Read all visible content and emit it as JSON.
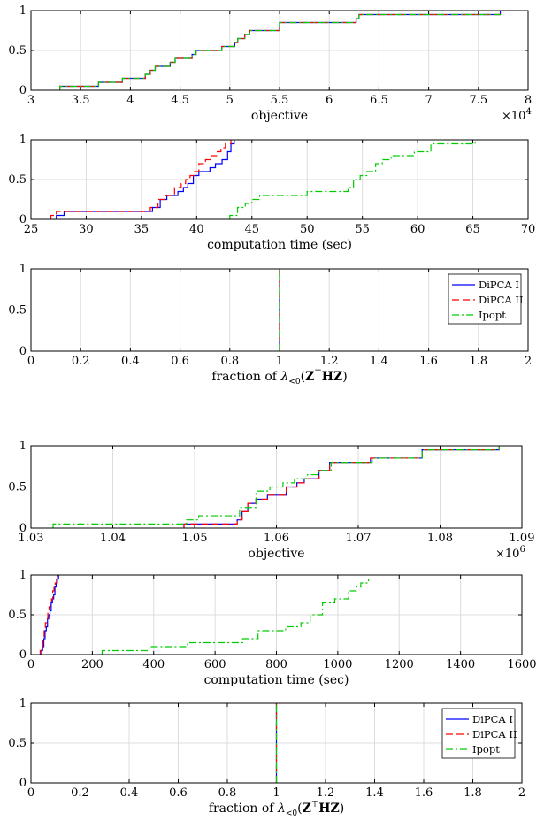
{
  "figure_colors": {
    "DiPCA I": "#0000ff",
    "DiPCA II": "#ff0000",
    "Ipopt": "#00cc00",
    "black": "#000000"
  },
  "chart_data": [
    {
      "type": "line",
      "xlabel": "objective",
      "exponent_label": "×10^4",
      "xlim": [
        3,
        8
      ],
      "ylim": [
        0,
        1
      ],
      "xticks": [
        "3",
        "3.5",
        "4",
        "4.5",
        "5",
        "5.5",
        "6",
        "6.5",
        "7",
        "7.5",
        "8"
      ],
      "yticks": [
        "0",
        "0.5",
        "1"
      ],
      "series": [
        {
          "name": "DiPCA I",
          "style": "solid",
          "x": [
            3.29,
            3.68,
            3.92,
            4.15,
            4.2,
            4.25,
            4.4,
            4.45,
            4.62,
            4.66,
            4.92,
            5.05,
            5.08,
            5.15,
            5.2,
            5.5,
            6.27,
            6.3,
            7.72
          ],
          "y": [
            0.05,
            0.1,
            0.15,
            0.2,
            0.25,
            0.3,
            0.35,
            0.4,
            0.45,
            0.5,
            0.55,
            0.6,
            0.65,
            0.7,
            0.75,
            0.85,
            0.9,
            0.95,
            1.0
          ]
        },
        {
          "name": "DiPCA II",
          "style": "dashed",
          "x": [
            3.29,
            3.68,
            3.92,
            4.15,
            4.2,
            4.25,
            4.4,
            4.45,
            4.62,
            4.66,
            4.92,
            5.05,
            5.08,
            5.15,
            5.2,
            5.5,
            6.27,
            6.3,
            7.72
          ],
          "y": [
            0.05,
            0.1,
            0.15,
            0.2,
            0.25,
            0.3,
            0.35,
            0.4,
            0.45,
            0.5,
            0.55,
            0.6,
            0.65,
            0.7,
            0.75,
            0.85,
            0.9,
            0.95,
            1.0
          ]
        },
        {
          "name": "Ipopt",
          "style": "dashdot",
          "x": [
            3.29,
            3.68,
            3.92,
            4.15,
            4.2,
            4.25,
            4.4,
            4.45,
            4.62,
            4.66,
            4.92,
            5.05,
            5.08,
            5.15,
            5.2,
            5.5,
            6.27,
            6.3,
            7.72
          ],
          "y": [
            0.05,
            0.1,
            0.15,
            0.2,
            0.25,
            0.3,
            0.35,
            0.4,
            0.45,
            0.5,
            0.55,
            0.6,
            0.65,
            0.7,
            0.75,
            0.85,
            0.9,
            0.95,
            1.0
          ]
        }
      ]
    },
    {
      "type": "line",
      "xlabel": "computation time (sec)",
      "xlim": [
        25,
        70
      ],
      "ylim": [
        0,
        1
      ],
      "xticks": [
        "25",
        "30",
        "35",
        "40",
        "45",
        "50",
        "55",
        "60",
        "65",
        "70"
      ],
      "yticks": [
        "0",
        "0.5",
        "1"
      ],
      "series": [
        {
          "name": "DiPCA I",
          "style": "solid",
          "x": [
            27.3,
            28.0,
            36.0,
            36.7,
            37.3,
            38.3,
            38.8,
            39.2,
            39.7,
            40.2,
            41.2,
            41.7,
            42.3,
            42.8,
            43.1,
            43.4
          ],
          "y": [
            0.05,
            0.1,
            0.15,
            0.25,
            0.3,
            0.35,
            0.4,
            0.45,
            0.55,
            0.6,
            0.65,
            0.7,
            0.75,
            0.85,
            0.95,
            1.0
          ]
        },
        {
          "name": "DiPCA II",
          "style": "dashed",
          "x": [
            26.8,
            27.3,
            35.8,
            36.5,
            37.2,
            38.0,
            38.6,
            39.0,
            39.4,
            39.8,
            40.2,
            40.8,
            41.3,
            41.8,
            42.2,
            42.6,
            43.1
          ],
          "y": [
            0.05,
            0.1,
            0.15,
            0.25,
            0.3,
            0.4,
            0.45,
            0.5,
            0.55,
            0.6,
            0.7,
            0.75,
            0.8,
            0.85,
            0.9,
            0.95,
            1.0
          ]
        },
        {
          "name": "Ipopt",
          "style": "dashdot",
          "x": [
            43.0,
            43.7,
            44.4,
            45.0,
            45.7,
            50.0,
            53.7,
            54.2,
            54.8,
            55.4,
            56.2,
            56.8,
            57.6,
            59.7,
            61.2,
            65.2
          ],
          "y": [
            0.05,
            0.15,
            0.2,
            0.25,
            0.3,
            0.35,
            0.4,
            0.5,
            0.55,
            0.6,
            0.7,
            0.75,
            0.8,
            0.85,
            0.95,
            1.0
          ]
        }
      ]
    },
    {
      "type": "line",
      "xlabel": "fraction of λ<0(Z⊤HZ)",
      "xlim": [
        0,
        2
      ],
      "ylim": [
        0,
        1
      ],
      "xticks": [
        "0",
        "0.2",
        "0.4",
        "0.6",
        "0.8",
        "1",
        "1.2",
        "1.4",
        "1.6",
        "1.8",
        "2"
      ],
      "yticks": [
        "0",
        "0.5",
        "1"
      ],
      "legend": {
        "position": "top-right",
        "entries": [
          "DiPCA I",
          "DiPCA II",
          "Ipopt"
        ]
      },
      "series": [
        {
          "name": "DiPCA I",
          "style": "solid",
          "x": [
            1,
            1
          ],
          "y": [
            0,
            1
          ]
        },
        {
          "name": "DiPCA II",
          "style": "dashed",
          "x": [
            1,
            1
          ],
          "y": [
            0,
            1
          ]
        },
        {
          "name": "Ipopt",
          "style": "dashdot",
          "x": [
            1,
            1
          ],
          "y": [
            0,
            1
          ]
        }
      ]
    },
    {
      "type": "line",
      "xlabel": "objective",
      "exponent_label": "×10^6",
      "xlim": [
        1.03,
        1.09
      ],
      "ylim": [
        0,
        1
      ],
      "xticks": [
        "1.03",
        "1.04",
        "1.05",
        "1.06",
        "1.07",
        "1.08",
        "1.09"
      ],
      "yticks": [
        "0",
        "0.5",
        "1"
      ],
      "series": [
        {
          "name": "DiPCA I",
          "style": "solid",
          "x": [
            1.0487,
            1.0552,
            1.0558,
            1.0565,
            1.0575,
            1.0589,
            1.0612,
            1.0625,
            1.0634,
            1.0652,
            1.0665,
            1.0715,
            1.0778,
            1.0872
          ],
          "y": [
            0.05,
            0.1,
            0.2,
            0.3,
            0.35,
            0.4,
            0.5,
            0.55,
            0.6,
            0.7,
            0.8,
            0.85,
            0.95,
            1.0
          ]
        },
        {
          "name": "DiPCA II",
          "style": "dashed",
          "x": [
            1.0487,
            1.0552,
            1.0558,
            1.0565,
            1.0575,
            1.0589,
            1.0612,
            1.0625,
            1.0634,
            1.0652,
            1.0665,
            1.0715,
            1.0778,
            1.0872
          ],
          "y": [
            0.05,
            0.1,
            0.2,
            0.3,
            0.35,
            0.4,
            0.5,
            0.55,
            0.6,
            0.7,
            0.8,
            0.85,
            0.95,
            1.0
          ]
        },
        {
          "name": "Ipopt",
          "style": "dashdot",
          "x": [
            1.0327,
            1.049,
            1.0505,
            1.0555,
            1.0575,
            1.0592,
            1.0608,
            1.0622,
            1.0638,
            1.0652,
            1.0667,
            1.0717,
            1.0778,
            1.0872
          ],
          "y": [
            0.05,
            0.1,
            0.15,
            0.25,
            0.45,
            0.5,
            0.55,
            0.6,
            0.65,
            0.7,
            0.8,
            0.85,
            0.95,
            1.0
          ]
        }
      ]
    },
    {
      "type": "line",
      "xlabel": "computation time (sec)",
      "xlim": [
        0,
        1600
      ],
      "ylim": [
        0,
        1
      ],
      "xticks": [
        "0",
        "200",
        "400",
        "600",
        "800",
        "1000",
        "1200",
        "1400",
        "1600"
      ],
      "yticks": [
        "0",
        "0.5",
        "1"
      ],
      "series": [
        {
          "name": "DiPCA I",
          "style": "solid",
          "x": [
            32,
            38,
            42,
            46,
            50,
            54,
            58,
            62,
            66,
            70,
            74,
            78,
            82,
            86,
            90
          ],
          "y": [
            0.05,
            0.1,
            0.2,
            0.3,
            0.35,
            0.45,
            0.5,
            0.55,
            0.65,
            0.7,
            0.75,
            0.85,
            0.9,
            0.95,
            1.0
          ]
        },
        {
          "name": "DiPCA II",
          "style": "dashed",
          "x": [
            30,
            35,
            39,
            43,
            47,
            51,
            55,
            59,
            63,
            67,
            71,
            75,
            79,
            83,
            87
          ],
          "y": [
            0.05,
            0.1,
            0.2,
            0.3,
            0.4,
            0.45,
            0.55,
            0.6,
            0.65,
            0.7,
            0.8,
            0.85,
            0.9,
            0.95,
            1.0
          ]
        },
        {
          "name": "Ipopt",
          "style": "dashdot",
          "x": [
            232,
            295,
            385,
            510,
            690,
            740,
            830,
            880,
            910,
            950,
            990,
            1035,
            1060,
            1075,
            1100
          ],
          "y": [
            0.05,
            0.05,
            0.1,
            0.15,
            0.2,
            0.3,
            0.35,
            0.4,
            0.5,
            0.65,
            0.7,
            0.8,
            0.85,
            0.9,
            0.95
          ]
        }
      ]
    },
    {
      "type": "line",
      "xlabel": "fraction of λ<0(Z⊤HZ)",
      "xlim": [
        0,
        2
      ],
      "ylim": [
        0,
        1
      ],
      "xticks": [
        "0",
        "0.2",
        "0.4",
        "0.6",
        "0.8",
        "1",
        "1.2",
        "1.4",
        "1.6",
        "1.8",
        "2"
      ],
      "yticks": [
        "0",
        "0.5",
        "1"
      ],
      "legend": {
        "position": "top-right",
        "entries": [
          "DiPCA I",
          "DiPCA II",
          "Ipopt"
        ]
      },
      "series": [
        {
          "name": "DiPCA I",
          "style": "solid",
          "x": [
            1,
            1
          ],
          "y": [
            0,
            1
          ]
        },
        {
          "name": "DiPCA II",
          "style": "dashed",
          "x": [
            1,
            1
          ],
          "y": [
            0,
            1
          ]
        },
        {
          "name": "Ipopt",
          "style": "dashdot",
          "x": [
            1,
            1
          ],
          "y": [
            0,
            1
          ]
        }
      ]
    }
  ]
}
